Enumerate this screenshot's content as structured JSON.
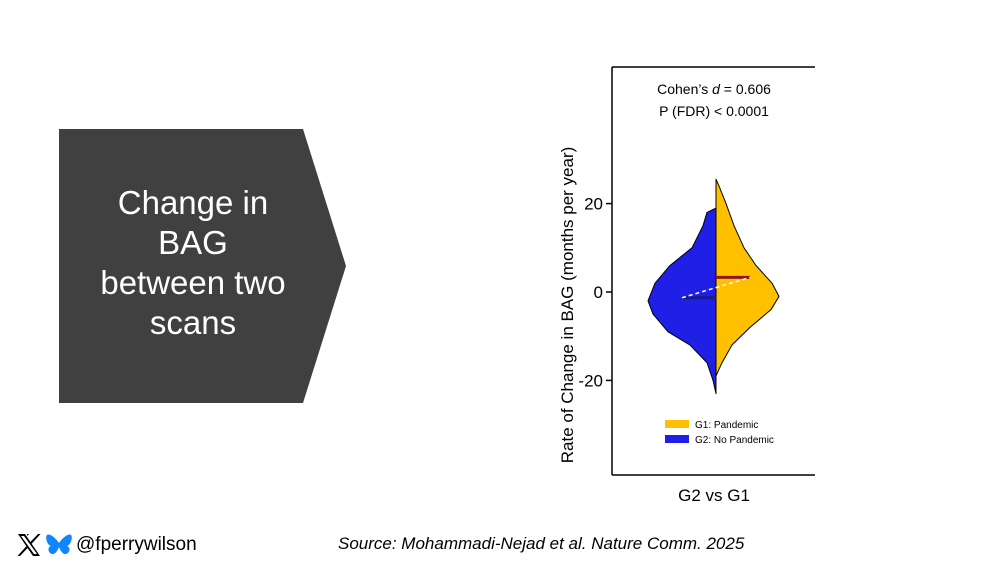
{
  "slide": {
    "arrow_text_lines": [
      "Change in",
      "BAG",
      "between two",
      "scans"
    ],
    "arrow_color": "#404040"
  },
  "footer": {
    "handle": "@fperrywilson",
    "source": "Source: Mohammadi-Nejad et al. Nature Comm. 2025",
    "icons": [
      "x-logo-icon",
      "bluesky-butterfly-icon"
    ]
  },
  "chart_data": {
    "type": "violin",
    "ylabel": "Rate of Change in BAG (months per year)",
    "ylim": [
      -40,
      52
    ],
    "yticks": [
      -20,
      0,
      20
    ],
    "ytick_labels": [
      "-20",
      "0",
      "20"
    ],
    "categories": [
      "G2 vs G1"
    ],
    "annotations": [
      "Cohen’s d = 0.606",
      "P (FDR) < 0.0001"
    ],
    "legend_position": "bottom-center",
    "series": [
      {
        "name": "G1: Pandemic",
        "color": "#FFC000",
        "median": 3.3,
        "min": -19,
        "max": 25.5
      },
      {
        "name": "G2: No Pandemic",
        "color": "#1F1FE6",
        "median": -1.3,
        "min": -23,
        "max": 19
      }
    ],
    "colors": {
      "g1_median_line": "#8B1A1A",
      "g2_median_line": "#1A1A8B",
      "connector": "#ffffff"
    }
  }
}
